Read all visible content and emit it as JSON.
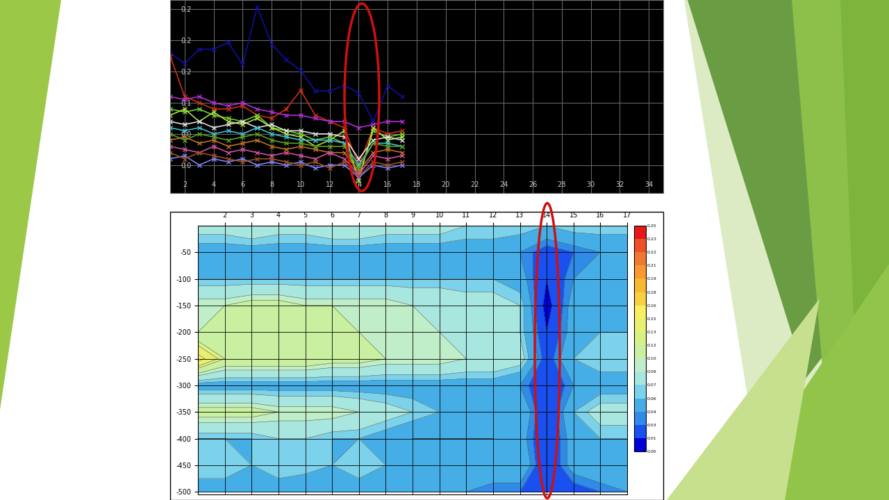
{
  "chart_data": [
    {
      "type": "line",
      "x": [
        1,
        2,
        3,
        4,
        5,
        6,
        7,
        8,
        9,
        10,
        11,
        12,
        13,
        14,
        15,
        16,
        17
      ],
      "xlim": [
        1,
        35
      ],
      "xticks": [
        2,
        4,
        6,
        8,
        10,
        12,
        14,
        16,
        18,
        20,
        22,
        24,
        26,
        28,
        30,
        32,
        34
      ],
      "ylim": [
        -0.045,
        0.265
      ],
      "yticks": [
        {
          "value": 0.0,
          "label": "0.0"
        },
        {
          "value": 0.05,
          "label": "0.0"
        },
        {
          "value": 0.1,
          "label": "0.1"
        },
        {
          "value": 0.15,
          "label": "0.2"
        },
        {
          "value": 0.2,
          "label": "0.2"
        },
        {
          "value": 0.25,
          "label": "0.2"
        }
      ],
      "grid": true,
      "marker": "x",
      "series": [
        {
          "color": "#1010a0",
          "values": [
            0.18,
            0.163,
            0.186,
            0.186,
            0.197,
            0.161,
            0.254,
            0.194,
            0.169,
            0.152,
            0.119,
            0.119,
            0.128,
            0.116,
            0.07,
            0.127,
            0.11
          ]
        },
        {
          "color": "#d03010",
          "values": [
            0.175,
            0.11,
            0.1,
            0.09,
            0.09,
            0.095,
            0.08,
            0.075,
            0.09,
            0.12,
            0.08,
            0.07,
            0.06,
            0.0,
            0.06,
            0.05,
            0.055
          ]
        },
        {
          "color": "#b030d0",
          "values": [
            0.11,
            0.105,
            0.11,
            0.1,
            0.095,
            0.1,
            0.09,
            0.085,
            0.08,
            0.08,
            0.075,
            0.07,
            0.07,
            0.06,
            0.065,
            0.07,
            0.07
          ]
        },
        {
          "color": "#70d030",
          "values": [
            0.09,
            0.085,
            0.09,
            0.08,
            0.075,
            0.07,
            0.08,
            0.06,
            0.055,
            0.05,
            0.04,
            0.045,
            0.035,
            -0.02,
            0.055,
            0.045,
            0.05
          ]
        },
        {
          "color": "#b0e040",
          "values": [
            0.08,
            0.09,
            0.07,
            0.085,
            0.07,
            0.065,
            0.075,
            0.06,
            0.05,
            0.045,
            0.03,
            0.04,
            0.055,
            -0.025,
            0.06,
            0.04,
            0.045
          ]
        },
        {
          "color": "#e0e0e0",
          "values": [
            0.07,
            0.065,
            0.07,
            0.06,
            0.065,
            0.07,
            0.06,
            0.065,
            0.055,
            0.055,
            0.05,
            0.05,
            0.045,
            0.01,
            0.04,
            0.045,
            0.04
          ]
        },
        {
          "color": "#40c0d0",
          "values": [
            0.06,
            0.055,
            0.06,
            0.05,
            0.055,
            0.05,
            0.06,
            0.05,
            0.045,
            0.04,
            0.04,
            0.04,
            0.035,
            0.0,
            0.035,
            0.035,
            0.03
          ]
        },
        {
          "color": "#c07020",
          "values": [
            0.04,
            0.045,
            0.035,
            0.04,
            0.03,
            0.035,
            0.04,
            0.03,
            0.025,
            0.03,
            0.025,
            0.02,
            0.02,
            -0.01,
            0.02,
            0.025,
            0.02
          ]
        },
        {
          "color": "#d050a0",
          "values": [
            0.03,
            0.025,
            0.02,
            0.03,
            0.02,
            0.025,
            0.02,
            0.015,
            0.02,
            0.015,
            0.01,
            0.02,
            0.01,
            -0.015,
            0.015,
            0.01,
            0.015
          ]
        },
        {
          "color": "#8080ff",
          "values": [
            0.01,
            0.015,
            0.0,
            0.01,
            0.005,
            0.01,
            0.0,
            0.005,
            0.0,
            0.005,
            -0.005,
            0.0,
            0.0,
            -0.02,
            0.0,
            -0.005,
            0.0
          ]
        },
        {
          "color": "#a05020",
          "values": [
            0.02,
            0.01,
            0.02,
            0.015,
            0.01,
            0.005,
            0.01,
            0.01,
            0.005,
            0.0,
            0.005,
            -0.005,
            0.005,
            -0.018,
            0.005,
            0.0,
            0.005
          ]
        },
        {
          "color": "#60a020",
          "values": [
            0.05,
            0.04,
            0.05,
            0.045,
            0.04,
            0.045,
            0.05,
            0.04,
            0.035,
            0.035,
            0.03,
            0.03,
            0.03,
            -0.005,
            0.035,
            0.03,
            0.03
          ]
        }
      ]
    },
    {
      "type": "contour",
      "x": [
        1,
        2,
        3,
        4,
        5,
        6,
        7,
        8,
        9,
        10,
        11,
        12,
        13,
        14,
        15,
        16,
        17
      ],
      "y": [
        0,
        -50,
        -100,
        -150,
        -200,
        -250,
        -300,
        -350,
        -400,
        -450,
        -500
      ],
      "cells": [
        [
          0.08,
          0.08,
          0.09,
          0.08,
          0.08,
          0.09,
          0.09,
          0.08,
          0.08,
          0.08,
          0.07,
          0.07,
          0.07,
          0.06,
          0.07,
          0.07,
          0.07
        ],
        [
          0.05,
          0.05,
          0.05,
          0.05,
          0.05,
          0.05,
          0.05,
          0.05,
          0.05,
          0.05,
          0.05,
          0.05,
          0.04,
          0.02,
          0.03,
          0.04,
          0.04
        ],
        [
          0.06,
          0.06,
          0.06,
          0.06,
          0.06,
          0.06,
          0.06,
          0.06,
          0.06,
          0.06,
          0.06,
          0.06,
          0.05,
          0.01,
          0.04,
          0.05,
          0.05
        ],
        [
          0.1,
          0.1,
          0.11,
          0.11,
          0.1,
          0.1,
          0.1,
          0.1,
          0.09,
          0.09,
          0.08,
          0.08,
          0.07,
          0.0,
          0.05,
          0.06,
          0.06
        ],
        [
          0.1,
          0.11,
          0.11,
          0.12,
          0.11,
          0.11,
          0.1,
          0.1,
          0.1,
          0.09,
          0.09,
          0.08,
          0.07,
          0.01,
          0.05,
          0.06,
          0.06
        ],
        [
          0.16,
          0.12,
          0.12,
          0.12,
          0.12,
          0.11,
          0.11,
          0.1,
          0.1,
          0.1,
          0.09,
          0.09,
          0.08,
          0.02,
          0.06,
          0.07,
          0.07
        ],
        [
          0.05,
          0.05,
          0.05,
          0.05,
          0.05,
          0.05,
          0.05,
          0.05,
          0.05,
          0.05,
          0.05,
          0.05,
          0.04,
          0.01,
          0.04,
          0.05,
          0.05
        ],
        [
          0.11,
          0.11,
          0.11,
          0.1,
          0.1,
          0.1,
          0.09,
          0.08,
          0.07,
          0.06,
          0.05,
          0.05,
          0.06,
          0.01,
          0.06,
          0.08,
          0.08
        ],
        [
          0.06,
          0.06,
          0.06,
          0.07,
          0.07,
          0.06,
          0.06,
          0.05,
          0.04,
          0.04,
          0.04,
          0.04,
          0.05,
          0.01,
          0.05,
          0.06,
          0.06
        ],
        [
          0.07,
          0.07,
          0.06,
          0.07,
          0.07,
          0.06,
          0.07,
          0.06,
          0.05,
          0.06,
          0.06,
          0.06,
          0.06,
          0.01,
          0.05,
          0.06,
          0.06
        ],
        [
          0.05,
          0.05,
          0.05,
          0.05,
          0.04,
          0.05,
          0.05,
          0.05,
          0.04,
          0.04,
          0.04,
          0.03,
          0.03,
          0.01,
          0.02,
          0.03,
          0.04
        ]
      ],
      "xlim": [
        1,
        17
      ],
      "xticks": [
        2,
        3,
        4,
        5,
        6,
        7,
        8,
        9,
        10,
        11,
        12,
        13,
        14,
        15,
        16,
        17
      ],
      "ylim": [
        -505,
        0
      ],
      "yticks": [
        -50,
        -100,
        -150,
        -200,
        -250,
        -300,
        -350,
        -400,
        -450,
        -500
      ],
      "grid": true,
      "levels": [
        0.0,
        0.01,
        0.03,
        0.04,
        0.06,
        0.07,
        0.09,
        0.1,
        0.12,
        0.13,
        0.15,
        0.16,
        0.18,
        0.19,
        0.21,
        0.22,
        0.23,
        0.25
      ],
      "colors": [
        "#0000d8",
        "#1a4ff0",
        "#2f8ae8",
        "#45aee6",
        "#7cd2ea",
        "#a8e6e0",
        "#c0eec8",
        "#c8f0a0",
        "#d8f088",
        "#e8f070",
        "#f8f060",
        "#f8d040",
        "#f8b830",
        "#f89830",
        "#f07830",
        "#f05028",
        "#e81818"
      ],
      "colorbar_ticks": [
        {
          "value": 0.0,
          "label": "0.00"
        },
        {
          "value": 0.01,
          "label": "0.01"
        },
        {
          "value": 0.03,
          "label": "0.03"
        },
        {
          "value": 0.04,
          "label": "0.04"
        },
        {
          "value": 0.06,
          "label": "0.06"
        },
        {
          "value": 0.07,
          "label": "0.07"
        },
        {
          "value": 0.09,
          "label": "0.09"
        },
        {
          "value": 0.1,
          "label": "0.10"
        },
        {
          "value": 0.12,
          "label": "0.12"
        },
        {
          "value": 0.13,
          "label": "0.13"
        },
        {
          "value": 0.15,
          "label": "0.15"
        },
        {
          "value": 0.16,
          "label": "0.16"
        },
        {
          "value": 0.18,
          "label": "0.18"
        },
        {
          "value": 0.19,
          "label": "0.19"
        },
        {
          "value": 0.21,
          "label": "0.21"
        },
        {
          "value": 0.22,
          "label": "0.22"
        },
        {
          "value": 0.23,
          "label": "0.23"
        },
        {
          "value": 0.25,
          "label": "0.25"
        }
      ]
    }
  ]
}
